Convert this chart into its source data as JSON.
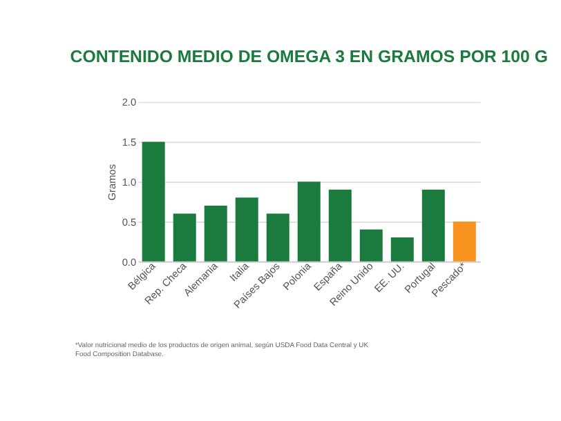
{
  "chart_data": {
    "type": "bar",
    "title": "CONTENIDO MEDIO DE OMEGA 3 EN GRAMOS POR 100 G",
    "ylabel": "Gramos",
    "categories": [
      "Bélgica",
      "Rep. Checa",
      "Alemania",
      "Italia",
      "Países Bajos",
      "Polonia",
      "España",
      "Reino Unido",
      "EE. UU.",
      "Portugal",
      "Pescado*"
    ],
    "values": [
      1.5,
      0.6,
      0.7,
      0.8,
      0.6,
      1.0,
      0.9,
      0.4,
      0.3,
      0.9,
      0.5
    ],
    "colors": [
      "#1b7a3e",
      "#1b7a3e",
      "#1b7a3e",
      "#1b7a3e",
      "#1b7a3e",
      "#1b7a3e",
      "#1b7a3e",
      "#1b7a3e",
      "#1b7a3e",
      "#1b7a3e",
      "#f7931e"
    ],
    "ylim": [
      0,
      2
    ],
    "yticks": [
      {
        "value": 0,
        "label": "0.0"
      },
      {
        "value": 0.5,
        "label": "0.5"
      },
      {
        "value": 1,
        "label": "1.0"
      },
      {
        "value": 1.5,
        "label": "1.5"
      },
      {
        "value": 2,
        "label": "2.0"
      }
    ],
    "grid": "y",
    "legend": false,
    "annotations": [
      "*Valor nutricional medio de los productos de origen animal, según USDA Food Data Central y UK Food Composition Database."
    ]
  }
}
